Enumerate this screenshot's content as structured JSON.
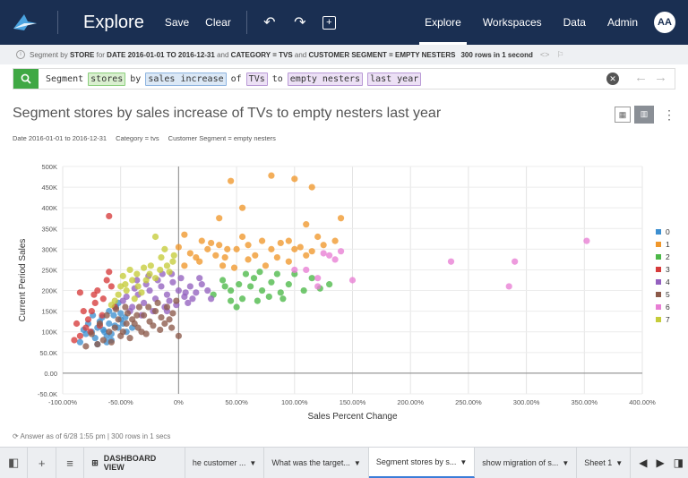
{
  "topbar": {
    "title": "Explore",
    "save_label": "Save",
    "clear_label": "Clear",
    "nav": [
      "Explore",
      "Workspaces",
      "Data",
      "Admin"
    ],
    "avatar_initials": "AA"
  },
  "infobar": {
    "prefix": "Segment by",
    "measure": "STORE",
    "for": "for",
    "date": "DATE 2016-01-01 TO 2016-12-31",
    "and1": "and",
    "category": "CATEGORY = TVS",
    "and2": "and",
    "segment": "CUSTOMER SEGMENT = EMPTY NESTERS",
    "rows": "300 rows in 1 second"
  },
  "search": {
    "words": [
      {
        "text": "Segment",
        "style": "plain"
      },
      {
        "text": "stores",
        "style": "green"
      },
      {
        "text": "by",
        "style": "plain"
      },
      {
        "text": "sales increase",
        "style": "blue"
      },
      {
        "text": "of",
        "style": "plain"
      },
      {
        "text": "TVs",
        "style": "purple"
      },
      {
        "text": "to",
        "style": "plain"
      },
      {
        "text": "empty nesters",
        "style": "purple"
      },
      {
        "text": "last year",
        "style": "purple"
      }
    ]
  },
  "page_title": "Segment stores by sales increase of TVs to empty nesters last year",
  "filters": [
    "Date 2016-01-01 to 2016-12-31",
    "Category = tvs",
    "Customer Segment = empty nesters"
  ],
  "chart_data": {
    "type": "scatter",
    "xlabel": "Sales Percent Change",
    "ylabel": "Current Period Sales",
    "xlim": [
      -100,
      400
    ],
    "ylim": [
      -50000,
      500000
    ],
    "xticks": [
      "-100.00%",
      "-50.00%",
      "0%",
      "50.00%",
      "100.00%",
      "150.00%",
      "200.00%",
      "250.00%",
      "300.00%",
      "350.00%",
      "400.00%"
    ],
    "yticks": [
      "-50.0K",
      "0.00",
      "50.0K",
      "100K",
      "150K",
      "200K",
      "250K",
      "300K",
      "350K",
      "400K",
      "450K",
      "500K"
    ],
    "legend_position": "right",
    "grid": true,
    "series": [
      {
        "name": "0",
        "color": "#3d8fd0",
        "points": [
          [
            -85,
            75000
          ],
          [
            -80,
            95000
          ],
          [
            -75,
            100000
          ],
          [
            -70,
            110000
          ],
          [
            -65,
            105000
          ],
          [
            -60,
            120000
          ],
          [
            -55,
            115000
          ],
          [
            -50,
            130000
          ],
          [
            -72,
            85000
          ],
          [
            -62,
            90000
          ],
          [
            -58,
            95000
          ],
          [
            -52,
            110000
          ],
          [
            -48,
            120000
          ],
          [
            -68,
            125000
          ],
          [
            -56,
            140000
          ],
          [
            -45,
            100000
          ],
          [
            -78,
            120000
          ],
          [
            -66,
            135000
          ],
          [
            -60,
            150000
          ],
          [
            -54,
            160000
          ],
          [
            -50,
            145000
          ],
          [
            -82,
            105000
          ],
          [
            -74,
            140000
          ],
          [
            -64,
            100000
          ],
          [
            -58,
            80000
          ],
          [
            -70,
            70000
          ],
          [
            -62,
            75000
          ],
          [
            -46,
            135000
          ],
          [
            -40,
            110000
          ],
          [
            -52,
            170000
          ]
        ]
      },
      {
        "name": "1",
        "color": "#f0972b",
        "points": [
          [
            45,
            465000
          ],
          [
            80,
            478000
          ],
          [
            100,
            470000
          ],
          [
            115,
            450000
          ],
          [
            55,
            400000
          ],
          [
            35,
            375000
          ],
          [
            140,
            375000
          ],
          [
            110,
            360000
          ],
          [
            0,
            305000
          ],
          [
            5,
            335000
          ],
          [
            20,
            320000
          ],
          [
            28,
            315000
          ],
          [
            35,
            310000
          ],
          [
            50,
            300000
          ],
          [
            55,
            330000
          ],
          [
            60,
            310000
          ],
          [
            72,
            320000
          ],
          [
            80,
            300000
          ],
          [
            88,
            315000
          ],
          [
            95,
            320000
          ],
          [
            105,
            305000
          ],
          [
            115,
            295000
          ],
          [
            120,
            330000
          ],
          [
            135,
            320000
          ],
          [
            40,
            280000
          ],
          [
            48,
            255000
          ],
          [
            60,
            275000
          ],
          [
            75,
            260000
          ],
          [
            85,
            280000
          ],
          [
            95,
            270000
          ],
          [
            110,
            285000
          ],
          [
            10,
            290000
          ],
          [
            18,
            270000
          ],
          [
            25,
            300000
          ],
          [
            32,
            285000
          ],
          [
            42,
            300000
          ],
          [
            66,
            285000
          ],
          [
            100,
            300000
          ],
          [
            125,
            310000
          ],
          [
            5,
            260000
          ],
          [
            15,
            280000
          ],
          [
            38,
            260000
          ]
        ]
      },
      {
        "name": "2",
        "color": "#4cb848",
        "points": [
          [
            30,
            190000
          ],
          [
            38,
            225000
          ],
          [
            45,
            200000
          ],
          [
            52,
            215000
          ],
          [
            58,
            240000
          ],
          [
            65,
            230000
          ],
          [
            72,
            200000
          ],
          [
            80,
            220000
          ],
          [
            88,
            195000
          ],
          [
            95,
            215000
          ],
          [
            100,
            240000
          ],
          [
            108,
            200000
          ],
          [
            115,
            230000
          ],
          [
            122,
            205000
          ],
          [
            130,
            215000
          ],
          [
            45,
            175000
          ],
          [
            55,
            180000
          ],
          [
            68,
            175000
          ],
          [
            78,
            185000
          ],
          [
            90,
            180000
          ],
          [
            62,
            210000
          ],
          [
            85,
            240000
          ],
          [
            40,
            210000
          ],
          [
            50,
            160000
          ],
          [
            70,
            245000
          ]
        ]
      },
      {
        "name": "3",
        "color": "#d63b3b",
        "points": [
          [
            -60,
            380000
          ],
          [
            -85,
            90000
          ],
          [
            -80,
            110000
          ],
          [
            -75,
            150000
          ],
          [
            -70,
            200000
          ],
          [
            -65,
            180000
          ],
          [
            -60,
            245000
          ],
          [
            -62,
            225000
          ],
          [
            -55,
            160000
          ],
          [
            -85,
            195000
          ],
          [
            -78,
            130000
          ],
          [
            -90,
            80000
          ],
          [
            -72,
            170000
          ],
          [
            -66,
            140000
          ],
          [
            -82,
            150000
          ],
          [
            -68,
            115000
          ],
          [
            -76,
            100000
          ],
          [
            -58,
            210000
          ],
          [
            -88,
            120000
          ],
          [
            -73,
            190000
          ]
        ]
      },
      {
        "name": "4",
        "color": "#9461bf",
        "points": [
          [
            -40,
            160000
          ],
          [
            -35,
            190000
          ],
          [
            -30,
            170000
          ],
          [
            -25,
            200000
          ],
          [
            -20,
            180000
          ],
          [
            -15,
            210000
          ],
          [
            -10,
            190000
          ],
          [
            -5,
            220000
          ],
          [
            0,
            200000
          ],
          [
            5,
            185000
          ],
          [
            10,
            210000
          ],
          [
            15,
            195000
          ],
          [
            20,
            215000
          ],
          [
            -45,
            185000
          ],
          [
            -38,
            205000
          ],
          [
            -28,
            215000
          ],
          [
            -18,
            225000
          ],
          [
            -8,
            175000
          ],
          [
            -2,
            165000
          ],
          [
            12,
            180000
          ],
          [
            25,
            200000
          ],
          [
            -32,
            140000
          ],
          [
            -22,
            150000
          ],
          [
            -12,
            160000
          ],
          [
            8,
            170000
          ],
          [
            -42,
            150000
          ],
          [
            -48,
            175000
          ],
          [
            2,
            230000
          ],
          [
            18,
            230000
          ],
          [
            -26,
            235000
          ],
          [
            -14,
            240000
          ],
          [
            -6,
            240000
          ],
          [
            28,
            180000
          ],
          [
            -36,
            225000
          ],
          [
            6,
            195000
          ],
          [
            -10,
            150000
          ]
        ]
      },
      {
        "name": "5",
        "color": "#8c5a4a",
        "points": [
          [
            -70,
            70000
          ],
          [
            -65,
            80000
          ],
          [
            -60,
            100000
          ],
          [
            -55,
            110000
          ],
          [
            -50,
            90000
          ],
          [
            -45,
            120000
          ],
          [
            -40,
            130000
          ],
          [
            -35,
            110000
          ],
          [
            -30,
            140000
          ],
          [
            -25,
            125000
          ],
          [
            -20,
            150000
          ],
          [
            -15,
            135000
          ],
          [
            -10,
            160000
          ],
          [
            -5,
            145000
          ],
          [
            0,
            90000
          ],
          [
            -75,
            95000
          ],
          [
            -68,
            120000
          ],
          [
            -58,
            75000
          ],
          [
            -52,
            130000
          ],
          [
            -48,
            100000
          ],
          [
            -42,
            85000
          ],
          [
            -36,
            140000
          ],
          [
            -28,
            95000
          ],
          [
            -22,
            115000
          ],
          [
            -18,
            170000
          ],
          [
            -12,
            120000
          ],
          [
            -8,
            130000
          ],
          [
            -2,
            175000
          ],
          [
            -62,
            140000
          ],
          [
            -54,
            155000
          ],
          [
            -46,
            160000
          ],
          [
            -38,
            120000
          ],
          [
            -32,
            100000
          ],
          [
            -26,
            160000
          ],
          [
            -80,
            65000
          ],
          [
            -16,
            105000
          ],
          [
            -6,
            110000
          ],
          [
            -44,
            145000
          ],
          [
            -34,
            160000
          ]
        ]
      },
      {
        "name": "6",
        "color": "#e87ed4",
        "points": [
          [
            110,
            250000
          ],
          [
            120,
            230000
          ],
          [
            125,
            290000
          ],
          [
            135,
            275000
          ],
          [
            140,
            295000
          ],
          [
            150,
            225000
          ],
          [
            120,
            210000
          ],
          [
            130,
            285000
          ],
          [
            235,
            270000
          ],
          [
            285,
            210000
          ],
          [
            290,
            270000
          ],
          [
            352,
            320000
          ],
          [
            100,
            250000
          ]
        ]
      },
      {
        "name": "7",
        "color": "#c5cc3a",
        "points": [
          [
            -55,
            175000
          ],
          [
            -50,
            210000
          ],
          [
            -45,
            200000
          ],
          [
            -40,
            225000
          ],
          [
            -35,
            210000
          ],
          [
            -30,
            255000
          ],
          [
            -25,
            240000
          ],
          [
            -20,
            330000
          ],
          [
            -15,
            280000
          ],
          [
            -10,
            260000
          ],
          [
            -5,
            270000
          ],
          [
            -12,
            300000
          ],
          [
            -20,
            230000
          ],
          [
            -48,
            235000
          ],
          [
            -42,
            250000
          ],
          [
            -36,
            240000
          ],
          [
            -28,
            225000
          ],
          [
            -52,
            190000
          ],
          [
            -8,
            245000
          ],
          [
            -58,
            165000
          ],
          [
            -32,
            195000
          ],
          [
            -24,
            260000
          ],
          [
            -16,
            250000
          ],
          [
            -46,
            215000
          ],
          [
            -38,
            180000
          ],
          [
            -4,
            285000
          ]
        ]
      }
    ]
  },
  "footer": {
    "answer_note": "Answer as of 6/28 1:55 pm | 300 rows in 1 secs",
    "dashboard_label": "DASHBOARD VIEW",
    "tabs": [
      "he customer ...",
      "What was the target...",
      "Segment stores by s...",
      "show migration of s...",
      "Sheet 1"
    ],
    "active_tab": 2
  },
  "colors": {
    "nav_bg": "#1a2f52",
    "search_btn": "#3fa844",
    "active_tab_underline": "#3b7dd8"
  }
}
